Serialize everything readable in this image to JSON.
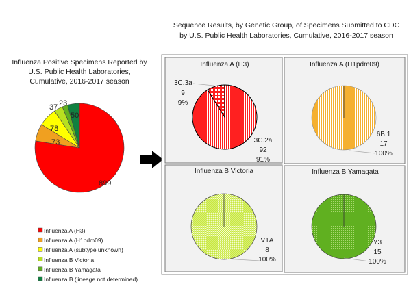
{
  "chart_data": [
    {
      "type": "pie",
      "title": [
        "Influenza Positive Specimens Reported by",
        "U.S. Public Health Laboratories,",
        "Cumulative, 2016-2017 season"
      ],
      "categories": [
        "Influenza A (H3)",
        "Influenza A (H1pdm09)",
        "Influenza A (subtype unknown)",
        "Influenza B Victoria",
        "Influenza B Yamagata",
        "Influenza B (lineage not determined)"
      ],
      "values": [
        899,
        73,
        78,
        37,
        23,
        50
      ],
      "colors": [
        "#ff0000",
        "#f0a020",
        "#ffff00",
        "#b8e020",
        "#60b020",
        "#108040"
      ],
      "legend": "bottom"
    },
    {
      "type": "pie",
      "super_title": [
        "Sequence Results, by Genetic Group, of Specimens Submitted to CDC",
        "by U.S. Public Health Laboratories, Cumulative, 2016-2017 season"
      ],
      "title": "Influenza A (H3)",
      "slices": [
        {
          "label": "3C.2a",
          "value": 92,
          "percent": "91%"
        },
        {
          "label": "3C.3a",
          "value": 9,
          "percent": "9%"
        }
      ],
      "colors": [
        "#ff2020",
        "#ff2020"
      ]
    },
    {
      "type": "pie",
      "title": "Influenza A (H1pdm09)",
      "slices": [
        {
          "label": "6B.1",
          "value": 17,
          "percent": "100%"
        }
      ],
      "colors": [
        "#f5b030"
      ]
    },
    {
      "type": "pie",
      "title": "Influenza B Victoria",
      "slices": [
        {
          "label": "V1A",
          "value": 8,
          "percent": "100%"
        }
      ],
      "colors": [
        "#c8e840"
      ]
    },
    {
      "type": "pie",
      "title": "Influenza B Yamagata",
      "slices": [
        {
          "label": "Y3",
          "value": 15,
          "percent": "100%"
        }
      ],
      "colors": [
        "#60b020"
      ]
    }
  ],
  "arrow_icon": "right-arrow-icon"
}
